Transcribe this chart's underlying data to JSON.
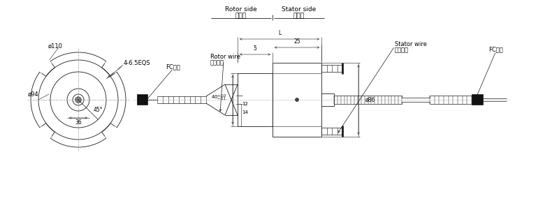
{
  "bg_color": "#ffffff",
  "line_color": "#1a1a1a",
  "rotor_side_label_en": "Rotor side",
  "rotor_side_label_cn": "转子边",
  "stator_side_label_en": "Stator side",
  "stator_side_label_cn": "定子边",
  "fc_label_left": "FC接头",
  "fc_label_right": "FC接头",
  "rotor_wire_en": "Rotor wire",
  "rotor_wire_cn": "转子出线",
  "stator_wire_en": "Stator wire",
  "stator_wire_cn": "定子出线",
  "dim_phi110": "ø110",
  "dim_phi94": "ø94",
  "dim_36": "36",
  "dim_4_65eqs": "4-6.5EQS",
  "dim_45": "45°",
  "dim_phi86": "ø86",
  "dim_14": "14",
  "dim_12": "12",
  "dim_5": "5",
  "dim_25": "25",
  "dim_L": "L"
}
